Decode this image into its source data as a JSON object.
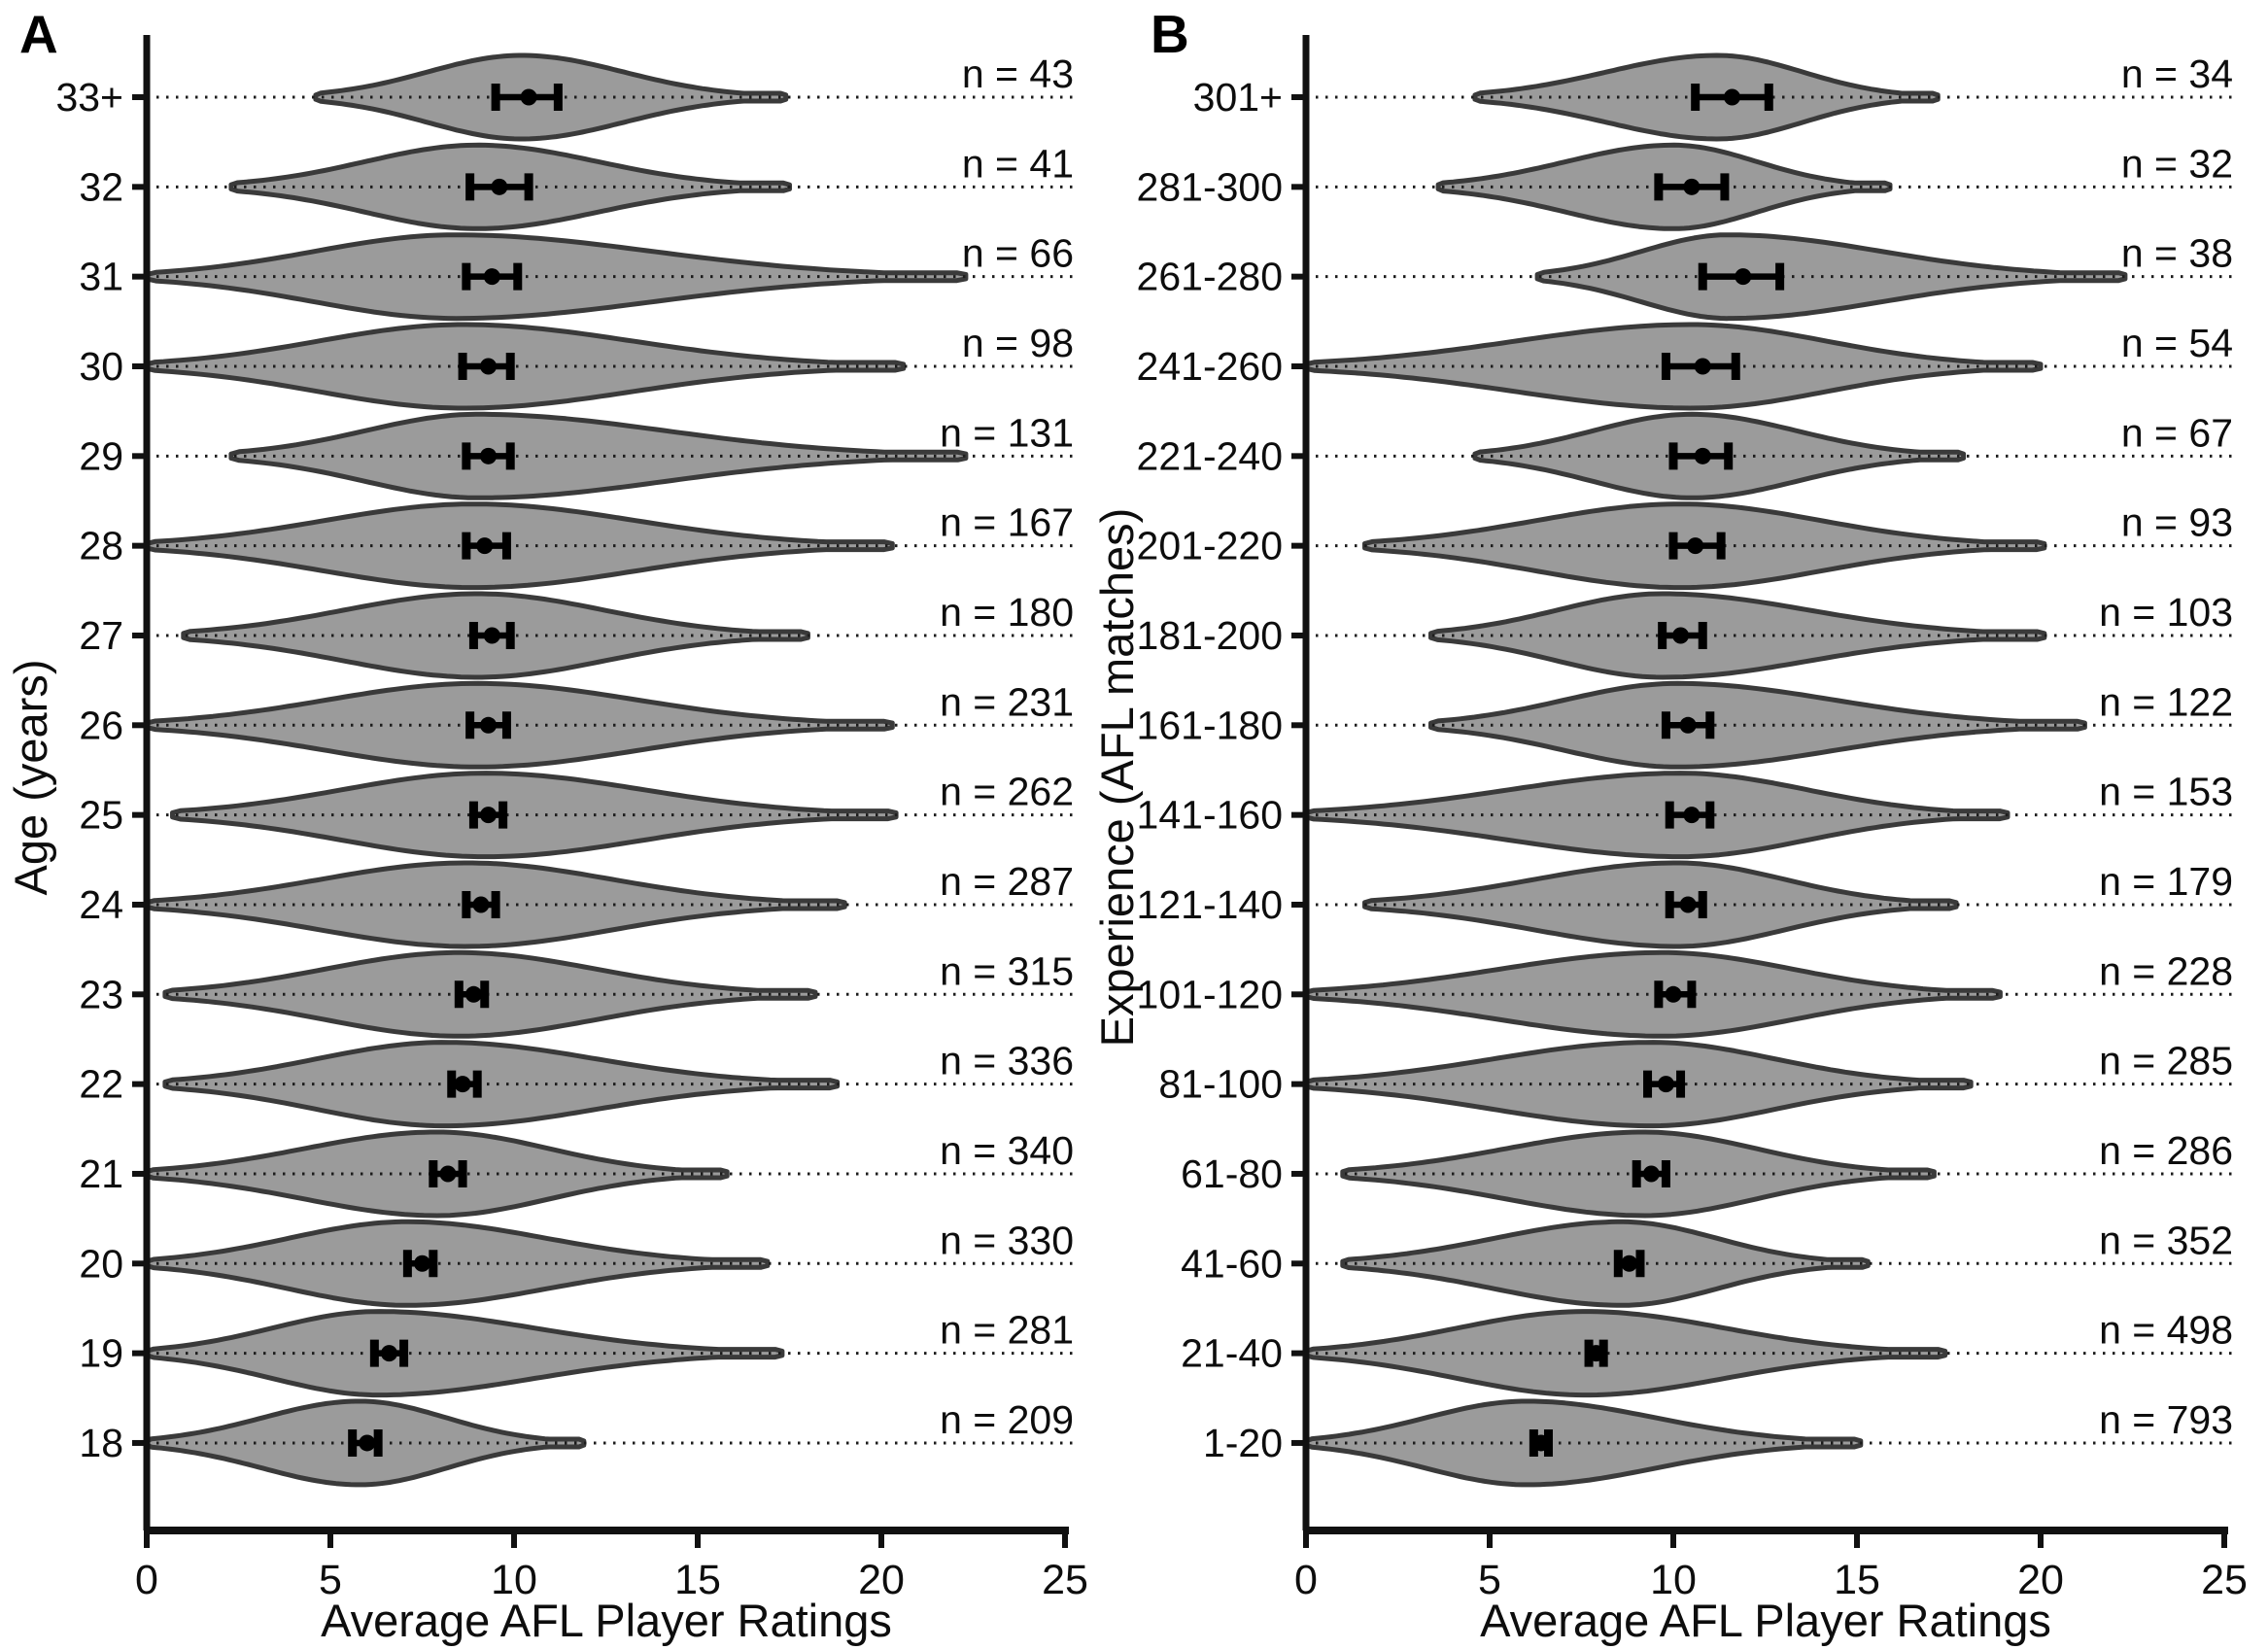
{
  "figure": {
    "background": "#ffffff",
    "style": {
      "violin_fill": "#9b9b9b",
      "violin_stroke": "#3a3a3a",
      "errorbar_color": "#000000",
      "axis_color": "#111111",
      "dotted_line_color": "#1c1c1c",
      "text_color": "#0d0d0d"
    }
  },
  "chart_data": [
    {
      "type": "violin",
      "panel_label": "A",
      "orientation": "horizontal",
      "xlabel": "Average AFL Player Ratings",
      "ylabel": "Age (years)",
      "xlim": [
        0,
        25
      ],
      "xticks": [
        0,
        5,
        10,
        15,
        20,
        25
      ],
      "grid": "dotted-row-lines",
      "annotation_format": "n = {n}",
      "rows": [
        {
          "category": "33+",
          "n": 43,
          "mean": 10.4,
          "ci_low": 9.5,
          "ci_high": 11.2,
          "min": 4.6,
          "max": 17.4,
          "mode": 10.2
        },
        {
          "category": "32",
          "n": 41,
          "mean": 9.6,
          "ci_low": 8.8,
          "ci_high": 10.4,
          "min": 2.3,
          "max": 17.5,
          "mode": 9.0
        },
        {
          "category": "31",
          "n": 66,
          "mean": 9.4,
          "ci_low": 8.7,
          "ci_high": 10.1,
          "min": 0.0,
          "max": 22.3,
          "mode": 8.4
        },
        {
          "category": "30",
          "n": 98,
          "mean": 9.3,
          "ci_low": 8.6,
          "ci_high": 9.9,
          "min": 0.0,
          "max": 20.6,
          "mode": 8.6
        },
        {
          "category": "29",
          "n": 131,
          "mean": 9.3,
          "ci_low": 8.7,
          "ci_high": 9.9,
          "min": 2.3,
          "max": 22.3,
          "mode": 9.0
        },
        {
          "category": "28",
          "n": 167,
          "mean": 9.2,
          "ci_low": 8.7,
          "ci_high": 9.8,
          "min": 0.0,
          "max": 20.3,
          "mode": 8.9
        },
        {
          "category": "27",
          "n": 180,
          "mean": 9.4,
          "ci_low": 8.9,
          "ci_high": 9.9,
          "min": 1.0,
          "max": 18.0,
          "mode": 9.0
        },
        {
          "category": "26",
          "n": 231,
          "mean": 9.3,
          "ci_low": 8.8,
          "ci_high": 9.8,
          "min": 0.0,
          "max": 20.3,
          "mode": 9.0
        },
        {
          "category": "25",
          "n": 262,
          "mean": 9.3,
          "ci_low": 8.9,
          "ci_high": 9.7,
          "min": 0.7,
          "max": 20.4,
          "mode": 9.2
        },
        {
          "category": "24",
          "n": 287,
          "mean": 9.1,
          "ci_low": 8.7,
          "ci_high": 9.5,
          "min": 0.0,
          "max": 19.0,
          "mode": 8.7
        },
        {
          "category": "23",
          "n": 315,
          "mean": 8.9,
          "ci_low": 8.5,
          "ci_high": 9.2,
          "min": 0.5,
          "max": 18.2,
          "mode": 8.5
        },
        {
          "category": "22",
          "n": 336,
          "mean": 8.6,
          "ci_low": 8.3,
          "ci_high": 9.0,
          "min": 0.5,
          "max": 18.8,
          "mode": 8.1
        },
        {
          "category": "21",
          "n": 340,
          "mean": 8.2,
          "ci_low": 7.8,
          "ci_high": 8.6,
          "min": 0.0,
          "max": 15.8,
          "mode": 7.9
        },
        {
          "category": "20",
          "n": 330,
          "mean": 7.5,
          "ci_low": 7.1,
          "ci_high": 7.8,
          "min": 0.0,
          "max": 16.9,
          "mode": 7.1
        },
        {
          "category": "19",
          "n": 281,
          "mean": 6.6,
          "ci_low": 6.2,
          "ci_high": 7.0,
          "min": 0.0,
          "max": 17.3,
          "mode": 6.3
        },
        {
          "category": "18",
          "n": 209,
          "mean": 6.0,
          "ci_low": 5.6,
          "ci_high": 6.3,
          "min": 0.0,
          "max": 11.9,
          "mode": 5.8
        }
      ]
    },
    {
      "type": "violin",
      "panel_label": "B",
      "orientation": "horizontal",
      "xlabel": "Average AFL Player Ratings",
      "ylabel": "Experience (AFL matches)",
      "xlim": [
        0,
        25
      ],
      "xticks": [
        0,
        5,
        10,
        15,
        20,
        25
      ],
      "grid": "dotted-row-lines",
      "annotation_format": "n = {n}",
      "rows": [
        {
          "category": "301+",
          "n": 34,
          "mean": 11.6,
          "ci_low": 10.6,
          "ci_high": 12.6,
          "min": 4.6,
          "max": 17.2,
          "mode": 11.2
        },
        {
          "category": "281-300",
          "n": 32,
          "mean": 10.5,
          "ci_low": 9.6,
          "ci_high": 11.4,
          "min": 3.6,
          "max": 15.9,
          "mode": 10.0
        },
        {
          "category": "261-280",
          "n": 38,
          "mean": 11.9,
          "ci_low": 10.8,
          "ci_high": 12.9,
          "min": 6.3,
          "max": 22.3,
          "mode": 11.5
        },
        {
          "category": "241-260",
          "n": 54,
          "mean": 10.8,
          "ci_low": 9.8,
          "ci_high": 11.7,
          "min": 0.0,
          "max": 20.0,
          "mode": 10.5
        },
        {
          "category": "221-240",
          "n": 67,
          "mean": 10.8,
          "ci_low": 10.0,
          "ci_high": 11.5,
          "min": 4.6,
          "max": 17.9,
          "mode": 10.5
        },
        {
          "category": "201-220",
          "n": 93,
          "mean": 10.6,
          "ci_low": 10.0,
          "ci_high": 11.3,
          "min": 1.6,
          "max": 20.1,
          "mode": 10.2
        },
        {
          "category": "181-200",
          "n": 103,
          "mean": 10.2,
          "ci_low": 9.7,
          "ci_high": 10.8,
          "min": 3.4,
          "max": 20.1,
          "mode": 9.7
        },
        {
          "category": "161-180",
          "n": 122,
          "mean": 10.4,
          "ci_low": 9.8,
          "ci_high": 11.0,
          "min": 3.4,
          "max": 21.2,
          "mode": 10.1
        },
        {
          "category": "141-160",
          "n": 153,
          "mean": 10.5,
          "ci_low": 9.9,
          "ci_high": 11.0,
          "min": 0.0,
          "max": 19.1,
          "mode": 10.2
        },
        {
          "category": "121-140",
          "n": 179,
          "mean": 10.4,
          "ci_low": 9.9,
          "ci_high": 10.8,
          "min": 1.6,
          "max": 17.7,
          "mode": 10.1
        },
        {
          "category": "101-120",
          "n": 228,
          "mean": 10.0,
          "ci_low": 9.6,
          "ci_high": 10.5,
          "min": 0.0,
          "max": 18.9,
          "mode": 9.7
        },
        {
          "category": "81-100",
          "n": 285,
          "mean": 9.8,
          "ci_low": 9.3,
          "ci_high": 10.2,
          "min": 0.0,
          "max": 18.1,
          "mode": 9.4
        },
        {
          "category": "61-80",
          "n": 286,
          "mean": 9.4,
          "ci_low": 9.0,
          "ci_high": 9.8,
          "min": 1.0,
          "max": 17.1,
          "mode": 9.2
        },
        {
          "category": "41-60",
          "n": 352,
          "mean": 8.8,
          "ci_low": 8.5,
          "ci_high": 9.1,
          "min": 1.0,
          "max": 15.3,
          "mode": 8.6
        },
        {
          "category": "21-40",
          "n": 498,
          "mean": 7.9,
          "ci_low": 7.7,
          "ci_high": 8.1,
          "min": 0.0,
          "max": 17.4,
          "mode": 7.6
        },
        {
          "category": "1-20",
          "n": 793,
          "mean": 6.4,
          "ci_low": 6.2,
          "ci_high": 6.6,
          "min": 0.0,
          "max": 15.1,
          "mode": 6.0
        }
      ]
    }
  ]
}
